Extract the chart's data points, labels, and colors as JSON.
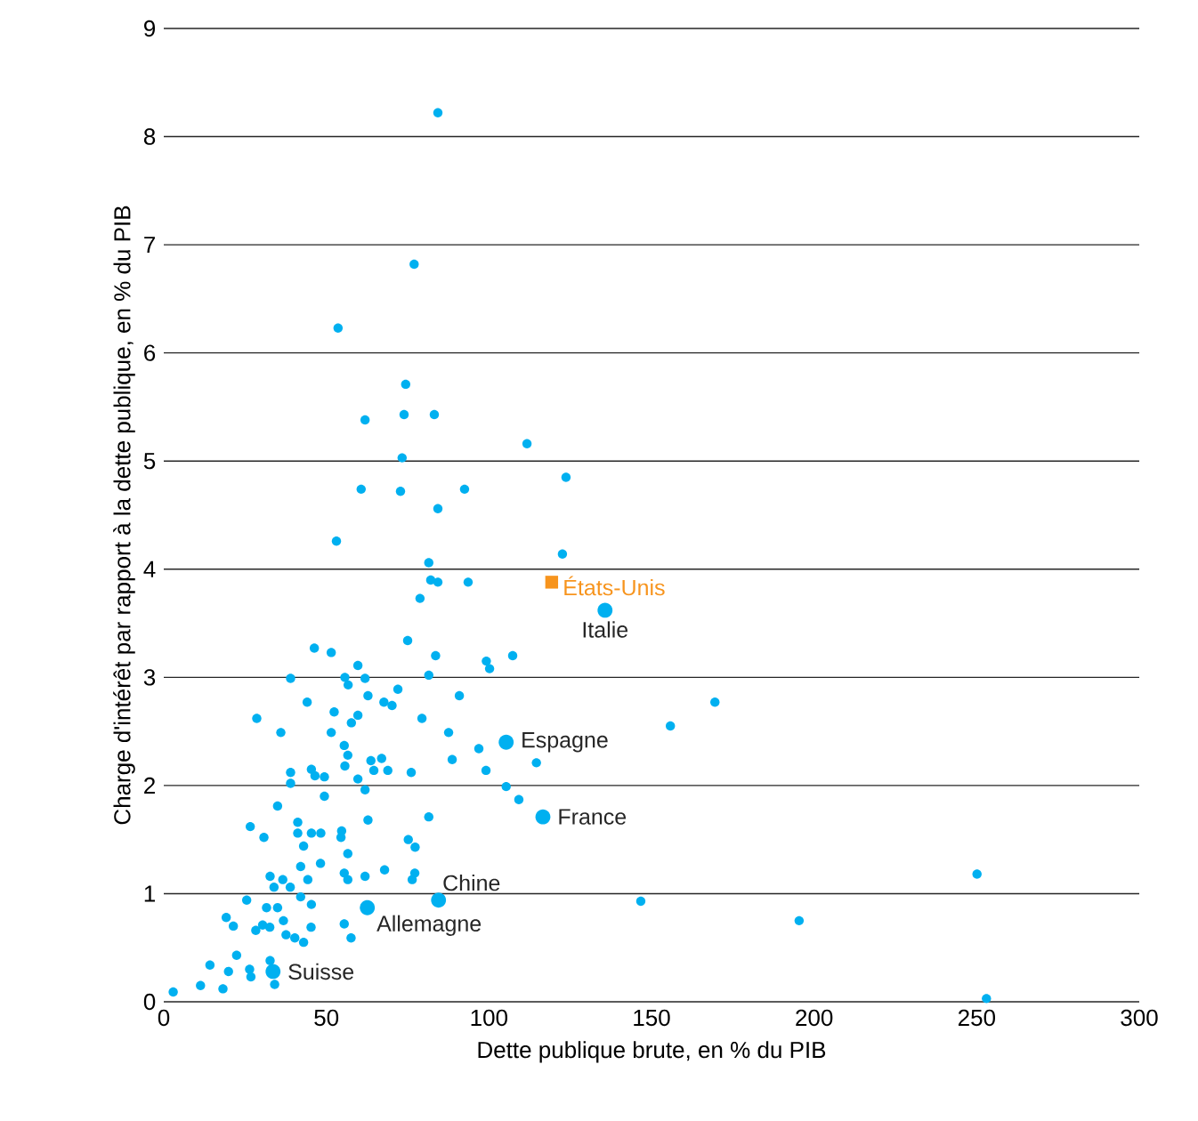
{
  "chart_data": {
    "type": "scatter",
    "xlabel": "Dette publique brute, en % du PIB",
    "ylabel": "Charge d'intérêt par rapport à la dette publique, en % du PIB",
    "xlim": [
      0,
      300
    ],
    "xticks": [
      0,
      50,
      100,
      150,
      200,
      250,
      300
    ],
    "ylim": [
      0,
      9
    ],
    "yticks": [
      0,
      1,
      2,
      3,
      4,
      5,
      6,
      7,
      8,
      9
    ],
    "grid": "y",
    "marker": "circle",
    "series": [
      {
        "color": "#00b0f0",
        "x": [
          84.3,
          77,
          53.6,
          74.4,
          61.9,
          73.9,
          83.2,
          111.7,
          73.3,
          60.7,
          72.8,
          92.5,
          123.7,
          84.3,
          53.1,
          122.6,
          81.5,
          82.1,
          84.3,
          93.6,
          78.8,
          75,
          83.6,
          99.2,
          100.2,
          107.3,
          46.3,
          51.5,
          39,
          59.7,
          55.7,
          61.9,
          56.7,
          72,
          81.5,
          90.9,
          62.8,
          44.1,
          67.7,
          70.2,
          52.4,
          28.6,
          79.4,
          59.7,
          57.7,
          36,
          51.5,
          87.6,
          55.5,
          56.6,
          63.7,
          67,
          55.7,
          64.6,
          68.9,
          76.1,
          39,
          45.4,
          46.5,
          49.4,
          39,
          59.7,
          61.9,
          49.4,
          88.7,
          96.9,
          99.1,
          114.6,
          105.3,
          109.2,
          81.5,
          35,
          26.6,
          30.8,
          41.2,
          41.2,
          45.4,
          48.3,
          54.7,
          54.5,
          62.8,
          43,
          56.6,
          75.2,
          77.3,
          48.2,
          42.1,
          67.9,
          77.2,
          76.4,
          55.5,
          56.6,
          61.9,
          32.7,
          36.6,
          44.3,
          33.9,
          38.9,
          42.1,
          45.4,
          25.5,
          31.6,
          35,
          19.2,
          21.4,
          28.3,
          30.4,
          32.6,
          36.8,
          45.3,
          37.6,
          40.3,
          43,
          55.5,
          57.6,
          22.4,
          14.2,
          19.9,
          26.4,
          32.7,
          34.1,
          26.8,
          11.3,
          18.2,
          2.9,
          155.8,
          169.5,
          146.7,
          195.4,
          250.1,
          253
        ],
        "values": [
          8.22,
          6.82,
          6.23,
          5.71,
          5.38,
          5.43,
          5.43,
          5.16,
          5.03,
          4.74,
          4.72,
          4.74,
          4.85,
          4.56,
          4.26,
          4.14,
          4.06,
          3.9,
          3.88,
          3.88,
          3.73,
          3.34,
          3.2,
          3.15,
          3.08,
          3.2,
          3.27,
          3.23,
          2.99,
          3.11,
          3,
          2.99,
          2.93,
          2.89,
          3.02,
          2.83,
          2.83,
          2.77,
          2.77,
          2.74,
          2.68,
          2.62,
          2.62,
          2.65,
          2.58,
          2.49,
          2.49,
          2.49,
          2.37,
          2.28,
          2.23,
          2.25,
          2.18,
          2.14,
          2.14,
          2.12,
          2.12,
          2.15,
          2.09,
          2.08,
          2.02,
          2.06,
          1.96,
          1.9,
          2.24,
          2.34,
          2.14,
          2.21,
          1.99,
          1.87,
          1.71,
          1.81,
          1.62,
          1.52,
          1.66,
          1.56,
          1.56,
          1.56,
          1.58,
          1.52,
          1.68,
          1.44,
          1.37,
          1.5,
          1.43,
          1.28,
          1.25,
          1.22,
          1.19,
          1.13,
          1.19,
          1.13,
          1.16,
          1.16,
          1.13,
          1.13,
          1.06,
          1.06,
          0.97,
          0.9,
          0.94,
          0.87,
          0.87,
          0.78,
          0.7,
          0.66,
          0.71,
          0.69,
          0.75,
          0.69,
          0.62,
          0.59,
          0.55,
          0.72,
          0.59,
          0.43,
          0.34,
          0.28,
          0.3,
          0.38,
          0.16,
          0.23,
          0.15,
          0.12,
          0.09,
          2.55,
          2.77,
          0.93,
          0.75,
          1.18,
          0.03
        ]
      },
      {
        "color": "#00b0f0",
        "x": [
          135.7,
          105.3,
          116.6,
          84.5,
          62.6,
          33.6
        ],
        "values": [
          3.62,
          2.4,
          1.71,
          0.94,
          0.87,
          0.28
        ]
      },
      {
        "name": "États-Unis",
        "color": "#f7941d",
        "marker": "square",
        "x": [
          119.3
        ],
        "values": [
          3.88
        ]
      }
    ],
    "annotations": [
      {
        "text": "Italie",
        "x": 135.7,
        "y": 3.62
      },
      {
        "text": "Espagne",
        "x": 105.3,
        "y": 2.4
      },
      {
        "text": "France",
        "x": 116.6,
        "y": 1.71
      },
      {
        "text": "Chine",
        "x": 84.5,
        "y": 0.94
      },
      {
        "text": "Allemagne",
        "x": 62.6,
        "y": 0.87
      },
      {
        "text": "Suisse",
        "x": 33.6,
        "y": 0.28
      }
    ]
  }
}
